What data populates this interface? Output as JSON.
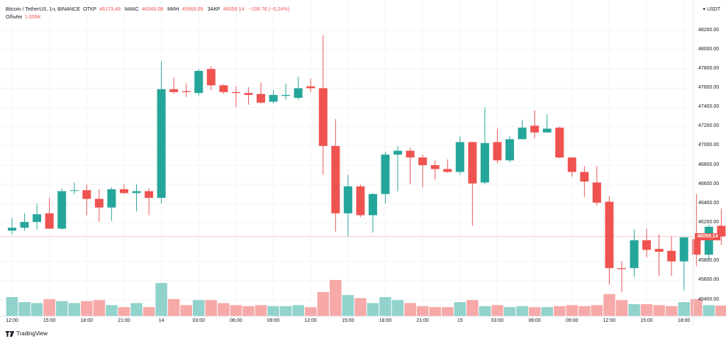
{
  "legend": {
    "symbol": "Bitcoin / TetherUS, 1ч, BINANCE",
    "open_label": "ОТКР",
    "open_value": "46173.49",
    "high_label": "МАКС",
    "high_value": "46349.08",
    "low_label": "МИН",
    "low_value": "45969.09",
    "close_label": "ЗАКР",
    "close_value": "46059.14",
    "change": "−108.76 (−0.24%)",
    "volume_label": "Объём",
    "volume_value": "1.055K"
  },
  "currency": {
    "label": "USDT",
    "arrow_icon": "chevron-down-icon"
  },
  "last_price": "46059.14",
  "footer": {
    "brand": "TradingView",
    "logo_icon": "tradingview-logo-icon"
  },
  "colors": {
    "up": "#26a69a",
    "down": "#ef5350",
    "up_vol": "#92d2cc",
    "down_vol": "#f7a9a7",
    "grid": "#f0f3fa",
    "price_line": "#f5c6c5"
  },
  "chart_data": {
    "type": "candlestick",
    "title": "Bitcoin / TetherUS, 1ч, BINANCE",
    "price_range": [
      45300,
      48300
    ],
    "y_ticks": [
      {
        "value": 48200,
        "label": "48200.00"
      },
      {
        "value": 48000,
        "label": "48000.00"
      },
      {
        "value": 47800,
        "label": "47800.00"
      },
      {
        "value": 47600,
        "label": "47600.00"
      },
      {
        "value": 47400,
        "label": "47400.00"
      },
      {
        "value": 47200,
        "label": "47200.00"
      },
      {
        "value": 47000,
        "label": "47000.00"
      },
      {
        "value": 46800,
        "label": "46800.00"
      },
      {
        "value": 46600,
        "label": "46600.00"
      },
      {
        "value": 46400,
        "label": "46400.00"
      },
      {
        "value": 46200,
        "label": "46200.00"
      },
      {
        "value": 45800,
        "label": "45800.00"
      },
      {
        "value": 45600,
        "label": "45600.00"
      },
      {
        "value": 45400,
        "label": "45400.00"
      }
    ],
    "x_ticks": [
      {
        "index": 0,
        "label": "12:00"
      },
      {
        "index": 3,
        "label": "15:00"
      },
      {
        "index": 6,
        "label": "18:00"
      },
      {
        "index": 9,
        "label": "21:00"
      },
      {
        "index": 12,
        "label": "14"
      },
      {
        "index": 15,
        "label": "03:00"
      },
      {
        "index": 18,
        "label": "06:00"
      },
      {
        "index": 21,
        "label": "09:00"
      },
      {
        "index": 24,
        "label": "12:00"
      },
      {
        "index": 27,
        "label": "15:00"
      },
      {
        "index": 30,
        "label": "18:00"
      },
      {
        "index": 33,
        "label": "21:00"
      },
      {
        "index": 36,
        "label": "15"
      },
      {
        "index": 39,
        "label": "03:00"
      },
      {
        "index": 42,
        "label": "06:00"
      },
      {
        "index": 45,
        "label": "09:00"
      },
      {
        "index": 48,
        "label": "12:00"
      },
      {
        "index": 51,
        "label": "15:00"
      },
      {
        "index": 54,
        "label": "18:00"
      }
    ],
    "candles": [
      {
        "o": 46120,
        "h": 46250,
        "l": 46080,
        "c": 46150,
        "v": 1.9
      },
      {
        "o": 46150,
        "h": 46300,
        "l": 46120,
        "c": 46210,
        "v": 1.4
      },
      {
        "o": 46210,
        "h": 46400,
        "l": 46130,
        "c": 46290,
        "v": 1.3
      },
      {
        "o": 46300,
        "h": 46460,
        "l": 46140,
        "c": 46140,
        "v": 1.7
      },
      {
        "o": 46140,
        "h": 46560,
        "l": 46130,
        "c": 46530,
        "v": 1.5
      },
      {
        "o": 46540,
        "h": 46620,
        "l": 46500,
        "c": 46540,
        "v": 1.3
      },
      {
        "o": 46540,
        "h": 46600,
        "l": 46280,
        "c": 46450,
        "v": 1.5
      },
      {
        "o": 46450,
        "h": 46550,
        "l": 46210,
        "c": 46360,
        "v": 1.6
      },
      {
        "o": 46360,
        "h": 46570,
        "l": 46220,
        "c": 46550,
        "v": 1.1
      },
      {
        "o": 46550,
        "h": 46600,
        "l": 46500,
        "c": 46510,
        "v": 0.9
      },
      {
        "o": 46510,
        "h": 46600,
        "l": 46320,
        "c": 46530,
        "v": 1.3
      },
      {
        "o": 46530,
        "h": 46560,
        "l": 46280,
        "c": 46460,
        "v": 0.9
      },
      {
        "o": 46460,
        "h": 47880,
        "l": 46400,
        "c": 47590,
        "v": 3.3
      },
      {
        "o": 47590,
        "h": 47710,
        "l": 47540,
        "c": 47560,
        "v": 1.7
      },
      {
        "o": 47570,
        "h": 47650,
        "l": 47510,
        "c": 47560,
        "v": 1.1
      },
      {
        "o": 47550,
        "h": 47800,
        "l": 47520,
        "c": 47780,
        "v": 1.6
      },
      {
        "o": 47800,
        "h": 47830,
        "l": 47580,
        "c": 47630,
        "v": 1.6
      },
      {
        "o": 47630,
        "h": 47640,
        "l": 47540,
        "c": 47560,
        "v": 1.3
      },
      {
        "o": 47560,
        "h": 47620,
        "l": 47400,
        "c": 47550,
        "v": 1.1
      },
      {
        "o": 47550,
        "h": 47610,
        "l": 47430,
        "c": 47530,
        "v": 1.0
      },
      {
        "o": 47540,
        "h": 47660,
        "l": 47440,
        "c": 47450,
        "v": 1.1
      },
      {
        "o": 47460,
        "h": 47580,
        "l": 47440,
        "c": 47530,
        "v": 1.0
      },
      {
        "o": 47520,
        "h": 47650,
        "l": 47480,
        "c": 47530,
        "v": 1.0
      },
      {
        "o": 47500,
        "h": 47720,
        "l": 47480,
        "c": 47600,
        "v": 1.1
      },
      {
        "o": 47620,
        "h": 47700,
        "l": 47560,
        "c": 47600,
        "v": 0.9
      },
      {
        "o": 47600,
        "h": 48150,
        "l": 46700,
        "c": 47000,
        "v": 2.4
      },
      {
        "o": 47000,
        "h": 47280,
        "l": 46110,
        "c": 46300,
        "v": 3.6
      },
      {
        "o": 46300,
        "h": 46700,
        "l": 46060,
        "c": 46580,
        "v": 2.1
      },
      {
        "o": 46580,
        "h": 46600,
        "l": 46260,
        "c": 46280,
        "v": 1.8
      },
      {
        "o": 46280,
        "h": 46510,
        "l": 46100,
        "c": 46500,
        "v": 1.3
      },
      {
        "o": 46500,
        "h": 46940,
        "l": 46400,
        "c": 46910,
        "v": 1.9
      },
      {
        "o": 46910,
        "h": 47000,
        "l": 46530,
        "c": 46950,
        "v": 1.6
      },
      {
        "o": 46950,
        "h": 46980,
        "l": 46600,
        "c": 46880,
        "v": 1.3
      },
      {
        "o": 46880,
        "h": 46910,
        "l": 46570,
        "c": 46800,
        "v": 1.0
      },
      {
        "o": 46800,
        "h": 46850,
        "l": 46650,
        "c": 46760,
        "v": 0.9
      },
      {
        "o": 46760,
        "h": 46860,
        "l": 46720,
        "c": 46730,
        "v": 0.9
      },
      {
        "o": 46730,
        "h": 47100,
        "l": 46700,
        "c": 47040,
        "v": 1.4
      },
      {
        "o": 47040,
        "h": 47040,
        "l": 46170,
        "c": 46610,
        "v": 1.6
      },
      {
        "o": 46620,
        "h": 47400,
        "l": 46600,
        "c": 47030,
        "v": 1.0
      },
      {
        "o": 47040,
        "h": 47180,
        "l": 46820,
        "c": 46850,
        "v": 1.1
      },
      {
        "o": 46850,
        "h": 47100,
        "l": 46830,
        "c": 47070,
        "v": 0.9
      },
      {
        "o": 47070,
        "h": 47270,
        "l": 47080,
        "c": 47190,
        "v": 1.0
      },
      {
        "o": 47210,
        "h": 47370,
        "l": 47080,
        "c": 47140,
        "v": 0.9
      },
      {
        "o": 47140,
        "h": 47330,
        "l": 47150,
        "c": 47180,
        "v": 0.9
      },
      {
        "o": 47190,
        "h": 47200,
        "l": 46870,
        "c": 46880,
        "v": 1.0
      },
      {
        "o": 46880,
        "h": 46860,
        "l": 46680,
        "c": 46730,
        "v": 1.1
      },
      {
        "o": 46730,
        "h": 46790,
        "l": 46470,
        "c": 46630,
        "v": 1.0
      },
      {
        "o": 46620,
        "h": 46790,
        "l": 46380,
        "c": 46410,
        "v": 1.1
      },
      {
        "o": 46420,
        "h": 46480,
        "l": 45560,
        "c": 45730,
        "v": 2.2
      },
      {
        "o": 45730,
        "h": 45800,
        "l": 45480,
        "c": 45720,
        "v": 1.6
      },
      {
        "o": 45730,
        "h": 46130,
        "l": 45640,
        "c": 46020,
        "v": 1.2
      },
      {
        "o": 46020,
        "h": 46140,
        "l": 45840,
        "c": 45920,
        "v": 1.2
      },
      {
        "o": 45930,
        "h": 46080,
        "l": 45650,
        "c": 45900,
        "v": 1.1
      },
      {
        "o": 45910,
        "h": 46060,
        "l": 45650,
        "c": 45800,
        "v": 1.0
      },
      {
        "o": 45800,
        "h": 46050,
        "l": 45500,
        "c": 46050,
        "v": 1.4
      },
      {
        "o": 46030,
        "h": 46500,
        "l": 45750,
        "c": 45870,
        "v": 1.7
      },
      {
        "o": 45870,
        "h": 46180,
        "l": 45810,
        "c": 46160,
        "v": 1.1
      },
      {
        "o": 46170,
        "h": 46349,
        "l": 45969,
        "c": 46059,
        "v": 1.055
      }
    ]
  }
}
